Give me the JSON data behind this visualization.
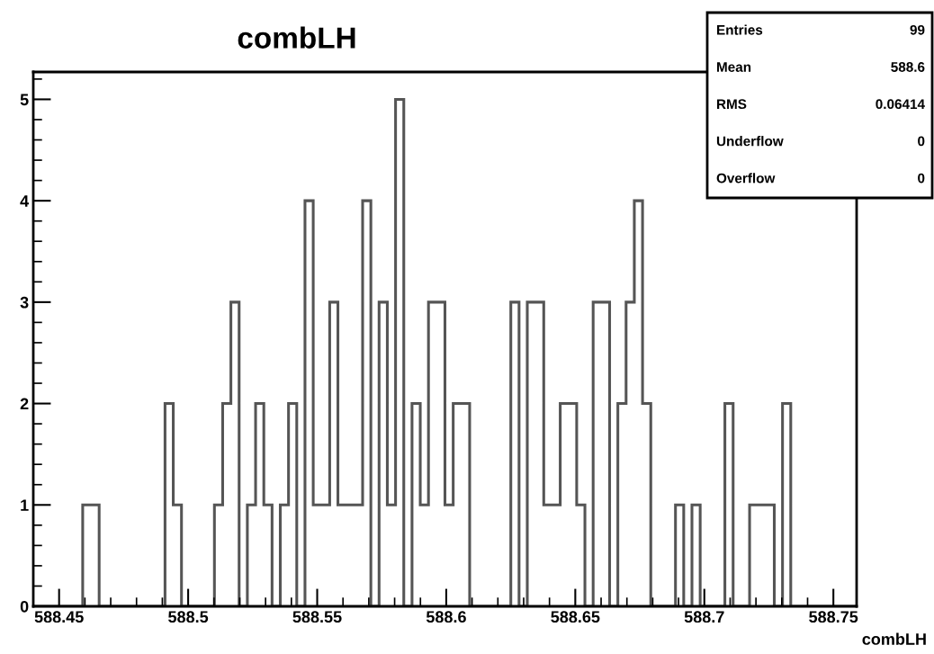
{
  "chart_data": {
    "type": "histogram",
    "title": "combLH",
    "xlabel": "combLH",
    "color": "#555555",
    "bins": [
      588.44,
      588.44319,
      588.44638,
      588.44957,
      588.45276,
      588.45595,
      588.45914,
      588.46233,
      588.46552,
      588.46871,
      588.4719,
      588.47509,
      588.47828,
      588.48147,
      588.48466,
      588.48785,
      588.49104,
      588.49423,
      588.49742,
      588.50061,
      588.5038,
      588.50699,
      588.51018,
      588.51337,
      588.51656,
      588.51975,
      588.52294,
      588.52613,
      588.52932,
      588.53251,
      588.5357,
      588.53889,
      588.54208,
      588.54527,
      588.54846,
      588.55165,
      588.55484,
      588.55803,
      588.56122,
      588.56441,
      588.5676,
      588.57079,
      588.57398,
      588.57717,
      588.58036,
      588.58355,
      588.58674,
      588.58993,
      588.59312,
      588.59631,
      588.5995,
      588.60269,
      588.60588,
      588.60907,
      588.61226,
      588.61545,
      588.61864,
      588.62183,
      588.62502,
      588.62821,
      588.6314,
      588.63459,
      588.63778,
      588.64097,
      588.64416,
      588.64735,
      588.65054,
      588.65373,
      588.65692,
      588.66011,
      588.6633,
      588.66649,
      588.66968,
      588.67287,
      588.67606,
      588.67925,
      588.68244,
      588.68563,
      588.68882,
      588.69201,
      588.6952,
      588.69839,
      588.70158,
      588.70477,
      588.70796,
      588.71115,
      588.71434,
      588.71753,
      588.72072,
      588.72391,
      588.7271,
      588.73029,
      588.73348,
      588.73667,
      588.73986,
      588.74305,
      588.74624,
      588.74943,
      588.75262,
      588.75581,
      588.759
    ],
    "values": [
      0,
      0,
      0,
      0,
      0,
      0,
      1,
      1,
      0,
      0,
      0,
      0,
      0,
      0,
      0,
      0,
      2,
      1,
      0,
      0,
      0,
      0,
      1,
      2,
      3,
      0,
      1,
      2,
      1,
      0,
      1,
      2,
      0,
      4,
      1,
      1,
      3,
      1,
      1,
      1,
      4,
      0,
      3,
      1,
      5,
      0,
      2,
      1,
      3,
      3,
      1,
      2,
      2,
      0,
      0,
      0,
      0,
      0,
      3,
      0,
      3,
      3,
      1,
      1,
      2,
      2,
      1,
      0,
      3,
      3,
      0,
      2,
      3,
      4,
      2,
      0,
      0,
      0,
      1,
      0,
      1,
      0,
      0,
      0,
      2,
      0,
      0,
      1,
      1,
      1,
      0,
      2,
      0,
      0,
      0,
      0,
      0,
      0,
      0,
      0
    ],
    "xlim": [
      588.44,
      588.759
    ],
    "xticks": [
      588.45,
      588.5,
      588.55,
      588.6,
      588.65,
      588.7,
      588.75
    ],
    "ylim": [
      0,
      5.27
    ],
    "yticks": [
      0,
      1,
      2,
      3,
      4,
      5
    ],
    "annotations": [
      "Entries 99",
      "Mean 588.6",
      "RMS 0.06414",
      "Underflow 0",
      "Overflow 0"
    ]
  }
}
